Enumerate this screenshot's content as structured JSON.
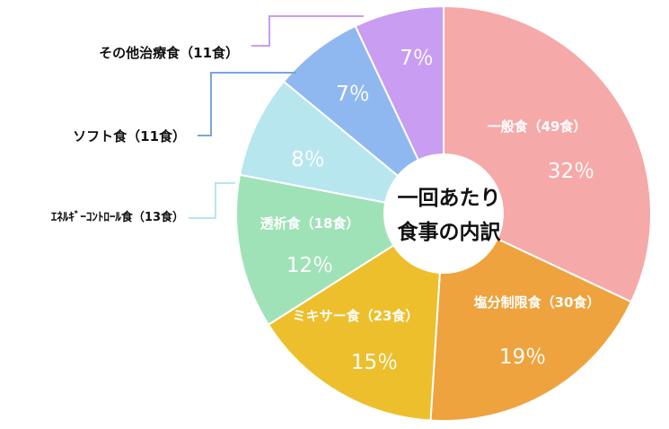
{
  "chart_data": {
    "type": "pie",
    "variant": "donut",
    "center_title_lines": [
      "一回あたり",
      "食事の内訳"
    ],
    "slices": [
      {
        "name": "一般食（49食）",
        "percent": 32,
        "percent_label": "32％",
        "color": "#f6a9a9",
        "label_inside": true
      },
      {
        "name": "塩分制限食（30食）",
        "percent": 19,
        "percent_label": "19％",
        "color": "#eea33e",
        "label_inside": true
      },
      {
        "name": "ミキサー食（23食）",
        "percent": 15,
        "percent_label": "15％",
        "color": "#edbf2c",
        "label_inside": true
      },
      {
        "name": "透析食（18食）",
        "percent": 12,
        "percent_label": "12％",
        "color": "#a0e2b8",
        "label_inside": true
      },
      {
        "name": "ｴﾈﾙｷﾞｰｺﾝﾄﾛｰﾙ食（13食）",
        "percent": 8,
        "percent_label": "8％",
        "color": "#b7e6ef",
        "label_inside": false,
        "leader_color": "#b7e6ef"
      },
      {
        "name": "ソフト食（11食）",
        "percent": 7,
        "percent_label": "7％",
        "color": "#90b8f0",
        "label_inside": false,
        "leader_color": "#7aa4dc"
      },
      {
        "name": "その他治療食（11食）",
        "percent": 7,
        "percent_label": "7％",
        "color": "#c89df2",
        "label_inside": false,
        "leader_color": "#c89df2"
      }
    ]
  }
}
